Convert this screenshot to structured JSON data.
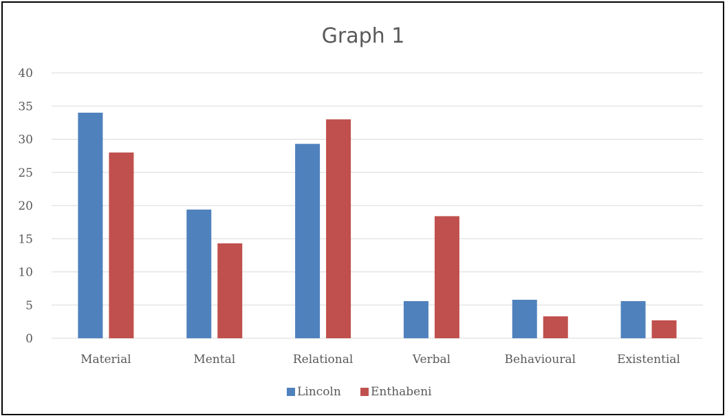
{
  "chart_data": {
    "type": "bar",
    "title": "Graph 1",
    "categories": [
      "Material",
      "Mental",
      "Relational",
      "Verbal",
      "Behavioural",
      "Existential"
    ],
    "series": [
      {
        "name": "Lincoln",
        "color": "#4f81bd",
        "values": [
          34,
          19.4,
          29.3,
          5.6,
          5.8,
          5.6
        ]
      },
      {
        "name": "Enthabeni",
        "color": "#c0504d",
        "values": [
          28,
          14.3,
          33,
          18.4,
          3.3,
          2.7
        ]
      }
    ],
    "ylim": [
      0,
      40
    ],
    "yticks": [
      "0",
      "5",
      "10",
      "15",
      "20",
      "25",
      "30",
      "35",
      "40"
    ],
    "grid": true,
    "gridColor": "#d9d9d9",
    "legend": "bottom-center"
  }
}
